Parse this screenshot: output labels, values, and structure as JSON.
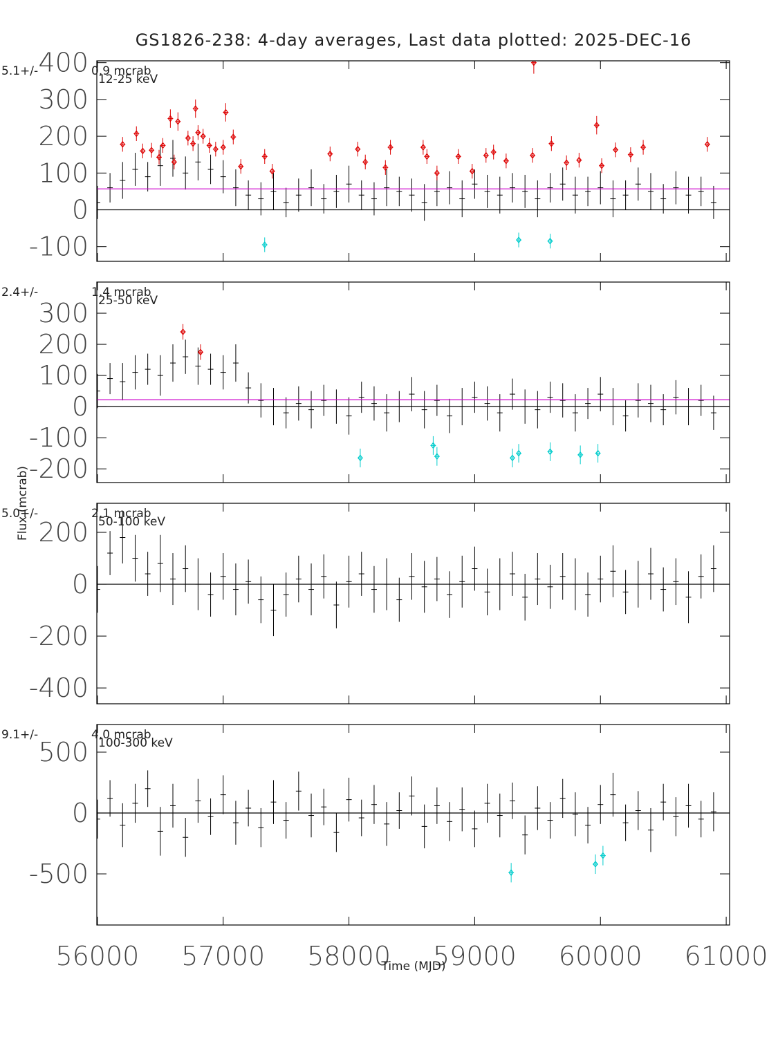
{
  "chart_data": [
    {
      "type": "errorbar",
      "title": "GS1826-238:  4-day averages,  Last data plotted: 2025-DEC-16",
      "mean_label": "5.1+/-",
      "error_label": "0.9 mcrab",
      "band_label": "12-25 keV",
      "xlim": [
        55995,
        61027
      ],
      "ylim": [
        -140,
        405
      ],
      "yticks": [
        -100,
        0,
        100,
        200,
        300,
        400
      ],
      "zero_line": 0,
      "mean_line": 57,
      "mean_color": "#cc00cc",
      "series": [
        {
          "color": "#000000",
          "marker": "none",
          "x": [
            56000,
            56100,
            56200,
            56300,
            56400,
            56500,
            56600,
            56700,
            56800,
            56900,
            57000,
            57100,
            57200,
            57300,
            57400,
            57500,
            57600,
            57700,
            57800,
            57900,
            58000,
            58100,
            58200,
            58300,
            58400,
            58500,
            58600,
            58700,
            58800,
            58900,
            59000,
            59100,
            59200,
            59300,
            59400,
            59500,
            59600,
            59700,
            59800,
            59900,
            60000,
            60100,
            60200,
            60300,
            60400,
            60500,
            60600,
            60700,
            60800,
            60900
          ],
          "values": [
            20,
            60,
            80,
            110,
            90,
            120,
            140,
            100,
            130,
            110,
            90,
            60,
            40,
            30,
            50,
            20,
            40,
            60,
            30,
            50,
            70,
            40,
            30,
            60,
            50,
            40,
            20,
            50,
            60,
            30,
            70,
            50,
            40,
            60,
            50,
            30,
            60,
            70,
            40,
            50,
            60,
            30,
            40,
            70,
            50,
            30,
            60,
            40,
            50,
            20
          ],
          "errors": [
            45,
            40,
            50,
            45,
            40,
            55,
            50,
            45,
            50,
            40,
            45,
            50,
            40,
            45,
            50,
            40,
            45,
            50,
            40,
            45,
            50,
            40,
            45,
            50,
            40,
            45,
            50,
            40,
            45,
            50,
            40,
            45,
            50,
            40,
            45,
            50,
            40,
            45,
            50,
            40,
            45,
            50,
            40,
            45,
            50,
            40,
            45,
            50,
            40,
            45
          ]
        },
        {
          "color": "#dd0000",
          "marker": "diamond",
          "x": [
            56200,
            56310,
            56360,
            56430,
            56490,
            56520,
            56580,
            56610,
            56640,
            56720,
            56760,
            56780,
            56800,
            56840,
            56890,
            56940,
            57000,
            57020,
            57080,
            57140,
            57330,
            57390,
            57850,
            58070,
            58130,
            58290,
            58330,
            58590,
            58620,
            58700,
            58870,
            58980,
            59090,
            59150,
            59250,
            59460,
            59470,
            59610,
            59730,
            59830,
            59970,
            60010,
            60120,
            60240,
            60340,
            60850
          ],
          "values": [
            178,
            207,
            160,
            162,
            143,
            175,
            248,
            130,
            240,
            195,
            180,
            275,
            210,
            200,
            175,
            165,
            170,
            265,
            198,
            118,
            145,
            105,
            152,
            165,
            130,
            115,
            170,
            170,
            145,
            100,
            145,
            105,
            148,
            157,
            133,
            148,
            400,
            180,
            128,
            135,
            230,
            120,
            163,
            150,
            170,
            178
          ],
          "errors": [
            20,
            20,
            20,
            20,
            20,
            20,
            25,
            20,
            25,
            20,
            20,
            25,
            20,
            20,
            20,
            20,
            20,
            25,
            20,
            20,
            20,
            20,
            20,
            20,
            20,
            20,
            20,
            20,
            20,
            20,
            20,
            20,
            20,
            20,
            20,
            20,
            30,
            20,
            20,
            20,
            25,
            20,
            20,
            20,
            20,
            20
          ]
        },
        {
          "color": "#00cccc",
          "marker": "diamond",
          "x": [
            57330,
            59350,
            59600
          ],
          "values": [
            -95,
            -82,
            -85
          ],
          "errors": [
            20,
            20,
            20
          ]
        }
      ]
    },
    {
      "type": "errorbar",
      "mean_label": "2.4+/-",
      "error_label": "1.4 mcrab",
      "band_label": "25-50 keV",
      "y_label": "Flux (mcrab)",
      "xlim": [
        55995,
        61027
      ],
      "ylim": [
        -244,
        400
      ],
      "yticks": [
        -200,
        -100,
        0,
        100,
        200,
        300
      ],
      "zero_line": 0,
      "mean_line": 22,
      "mean_color": "#cc00cc",
      "series": [
        {
          "color": "#000000",
          "marker": "none",
          "x": [
            56000,
            56100,
            56200,
            56300,
            56400,
            56500,
            56600,
            56700,
            56800,
            56900,
            57000,
            57100,
            57200,
            57300,
            57400,
            57500,
            57600,
            57700,
            57800,
            57900,
            58000,
            58100,
            58200,
            58300,
            58400,
            58500,
            58600,
            58700,
            58800,
            58900,
            59000,
            59100,
            59200,
            59300,
            59400,
            59500,
            59600,
            59700,
            59800,
            59900,
            60000,
            60100,
            60200,
            60300,
            60400,
            60500,
            60600,
            60700,
            60800,
            60900
          ],
          "values": [
            50,
            90,
            80,
            110,
            120,
            100,
            140,
            160,
            130,
            120,
            110,
            140,
            60,
            20,
            0,
            -20,
            10,
            -10,
            20,
            0,
            -30,
            30,
            10,
            -20,
            0,
            40,
            -10,
            20,
            -30,
            0,
            30,
            10,
            -20,
            40,
            0,
            -10,
            30,
            20,
            -20,
            10,
            40,
            0,
            -30,
            20,
            10,
            -10,
            30,
            0,
            20,
            -20
          ],
          "errors": [
            55,
            50,
            60,
            55,
            50,
            65,
            60,
            55,
            60,
            50,
            55,
            60,
            50,
            55,
            60,
            50,
            55,
            60,
            50,
            55,
            60,
            50,
            55,
            60,
            50,
            55,
            60,
            50,
            55,
            60,
            50,
            55,
            60,
            50,
            55,
            60,
            50,
            55,
            60,
            50,
            55,
            60,
            50,
            55,
            60,
            50,
            55,
            60,
            50,
            55
          ]
        },
        {
          "color": "#dd0000",
          "marker": "diamond",
          "x": [
            56680,
            56820
          ],
          "values": [
            240,
            175
          ],
          "errors": [
            25,
            25
          ]
        },
        {
          "color": "#00cccc",
          "marker": "diamond",
          "x": [
            58090,
            58670,
            58700,
            59300,
            59350,
            59600,
            59840,
            59980
          ],
          "values": [
            -165,
            -125,
            -160,
            -165,
            -150,
            -145,
            -155,
            -150
          ],
          "errors": [
            30,
            30,
            30,
            30,
            30,
            30,
            30,
            30
          ]
        }
      ]
    },
    {
      "type": "errorbar",
      "mean_label": "5.0+/-",
      "error_label": "2.1 mcrab",
      "band_label": "50-100 keV",
      "xlim": [
        55995,
        61027
      ],
      "ylim": [
        -461,
        312
      ],
      "yticks": [
        -400,
        -200,
        0,
        200
      ],
      "zero_line": 0,
      "series": [
        {
          "color": "#000000",
          "marker": "none",
          "x": [
            56000,
            56100,
            56200,
            56300,
            56400,
            56500,
            56600,
            56700,
            56800,
            56900,
            57000,
            57100,
            57200,
            57300,
            57400,
            57500,
            57600,
            57700,
            57800,
            57900,
            58000,
            58100,
            58200,
            58300,
            58400,
            58500,
            58600,
            58700,
            58800,
            58900,
            59000,
            59100,
            59200,
            59300,
            59400,
            59500,
            59600,
            59700,
            59800,
            59900,
            60000,
            60100,
            60200,
            60300,
            60400,
            60500,
            60600,
            60700,
            60800,
            60900
          ],
          "values": [
            -20,
            120,
            180,
            100,
            40,
            80,
            20,
            60,
            0,
            -40,
            30,
            -20,
            10,
            -60,
            -100,
            -40,
            20,
            -20,
            30,
            -80,
            10,
            40,
            -20,
            0,
            -60,
            30,
            -10,
            20,
            -40,
            10,
            60,
            -30,
            0,
            40,
            -50,
            20,
            -10,
            30,
            0,
            -40,
            20,
            50,
            -30,
            0,
            40,
            -20,
            10,
            -50,
            30,
            60
          ],
          "errors": [
            90,
            85,
            100,
            90,
            85,
            110,
            100,
            90,
            100,
            85,
            90,
            100,
            85,
            90,
            100,
            85,
            90,
            100,
            85,
            90,
            100,
            85,
            90,
            100,
            85,
            90,
            100,
            85,
            90,
            100,
            85,
            90,
            100,
            85,
            90,
            100,
            85,
            90,
            100,
            85,
            90,
            100,
            85,
            90,
            100,
            85,
            90,
            100,
            85,
            90
          ]
        }
      ]
    },
    {
      "type": "errorbar",
      "mean_label": "9.1+/-",
      "error_label": "4.0 mcrab",
      "band_label": "100-300 keV",
      "x_label": "Time (MJD)",
      "xlim": [
        55995,
        61027
      ],
      "ylim": [
        -920,
        727
      ],
      "yticks": [
        -500,
        0,
        500
      ],
      "xticks": [
        56000,
        57000,
        58000,
        59000,
        60000,
        61000
      ],
      "zero_line": 0,
      "series": [
        {
          "color": "#000000",
          "marker": "none",
          "x": [
            56000,
            56100,
            56200,
            56300,
            56400,
            56500,
            56600,
            56700,
            56800,
            56900,
            57000,
            57100,
            57200,
            57300,
            57400,
            57500,
            57600,
            57700,
            57800,
            57900,
            58000,
            58100,
            58200,
            58300,
            58400,
            58500,
            58600,
            58700,
            58800,
            58900,
            59000,
            59100,
            59200,
            59300,
            59400,
            59500,
            59600,
            59700,
            59800,
            59900,
            60000,
            60100,
            60200,
            60300,
            60400,
            60500,
            60600,
            60700,
            60800,
            60900
          ],
          "values": [
            -50,
            120,
            -100,
            80,
            200,
            -150,
            60,
            -200,
            100,
            -30,
            150,
            -80,
            40,
            -120,
            90,
            -60,
            180,
            -20,
            50,
            -160,
            110,
            -40,
            70,
            -90,
            20,
            140,
            -110,
            60,
            -70,
            30,
            -130,
            80,
            -20,
            100,
            -180,
            40,
            -60,
            120,
            -10,
            -100,
            70,
            150,
            -80,
            20,
            -140,
            90,
            -30,
            60,
            -50,
            10
          ],
          "errors": [
            160,
            150,
            180,
            160,
            150,
            200,
            180,
            160,
            180,
            150,
            160,
            180,
            150,
            160,
            180,
            150,
            160,
            180,
            150,
            160,
            180,
            150,
            160,
            180,
            150,
            160,
            180,
            150,
            160,
            180,
            150,
            160,
            180,
            150,
            160,
            180,
            150,
            160,
            180,
            150,
            160,
            180,
            150,
            160,
            180,
            150,
            160,
            180,
            150,
            160
          ]
        },
        {
          "color": "#00cccc",
          "marker": "diamond",
          "x": [
            59290,
            59960,
            60020
          ],
          "values": [
            -490,
            -420,
            -350
          ],
          "errors": [
            80,
            80,
            80
          ]
        }
      ]
    }
  ]
}
